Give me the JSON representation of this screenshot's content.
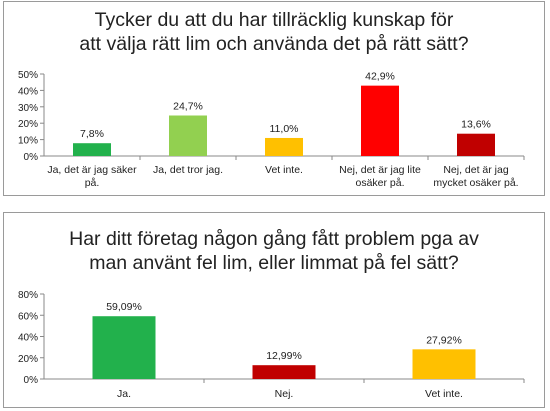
{
  "chart_data": [
    {
      "type": "bar",
      "title_lines": [
        "Tycker du att du har tillräcklig kunskap för",
        "att välja rätt lim och använda det på rätt sätt?"
      ],
      "categories": [
        [
          "Ja, det är jag säker",
          "på."
        ],
        [
          "Ja, det tror jag."
        ],
        [
          "Vet inte."
        ],
        [
          "Nej, det är jag lite",
          "osäker på."
        ],
        [
          "Nej, det är jag",
          "mycket osäker på."
        ]
      ],
      "values": [
        7.8,
        24.7,
        11.0,
        42.9,
        13.6
      ],
      "value_labels": [
        "7,8%",
        "24,7%",
        "11,0%",
        "42,9%",
        "13,6%"
      ],
      "colors": [
        "#22b14c",
        "#92d050",
        "#ffc000",
        "#ff0000",
        "#c00000"
      ],
      "y_ticks": [
        "0%",
        "10%",
        "20%",
        "30%",
        "40%",
        "50%"
      ],
      "ylim": [
        0,
        50
      ],
      "grid": false
    },
    {
      "type": "bar",
      "title_lines": [
        "Har ditt företag någon gång fått problem pga av",
        "man använt fel lim, eller limmat på fel sätt?"
      ],
      "categories": [
        [
          "Ja."
        ],
        [
          "Nej."
        ],
        [
          "Vet inte."
        ]
      ],
      "values": [
        59.09,
        12.99,
        27.92
      ],
      "value_labels": [
        "59,09%",
        "12,99%",
        "27,92%"
      ],
      "colors": [
        "#22b14c",
        "#c00000",
        "#ffc000"
      ],
      "y_ticks": [
        "0%",
        "20%",
        "40%",
        "60%",
        "80%"
      ],
      "ylim": [
        0,
        80
      ],
      "grid": false
    }
  ]
}
